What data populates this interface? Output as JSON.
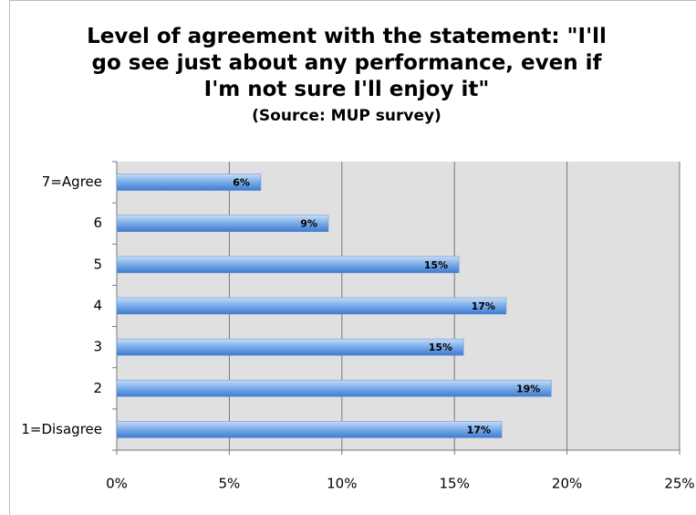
{
  "chart_data": {
    "type": "bar",
    "orientation": "horizontal",
    "title": "Level of agreement with the statement: \"I'll go see just about any performance, even if I'm not sure I'll enjoy it\"",
    "subtitle": "(Source: MUP survey)",
    "categories": [
      "7=Agree",
      "6",
      "5",
      "4",
      "3",
      "2",
      "1=Disagree"
    ],
    "values": [
      6.4,
      9.4,
      15.2,
      17.3,
      15.4,
      19.3,
      17.1
    ],
    "value_labels": [
      "6%",
      "9%",
      "15%",
      "17%",
      "15%",
      "19%",
      "17%"
    ],
    "color": "#5b8fd6",
    "xlim": [
      0,
      25
    ],
    "xticks": [
      {
        "value": 0,
        "label": "0%"
      },
      {
        "value": 5,
        "label": "5%"
      },
      {
        "value": 10,
        "label": "10%"
      },
      {
        "value": 15,
        "label": "15%"
      },
      {
        "value": 20,
        "label": "20%"
      },
      {
        "value": 25,
        "label": "25%"
      }
    ],
    "grid": true
  }
}
